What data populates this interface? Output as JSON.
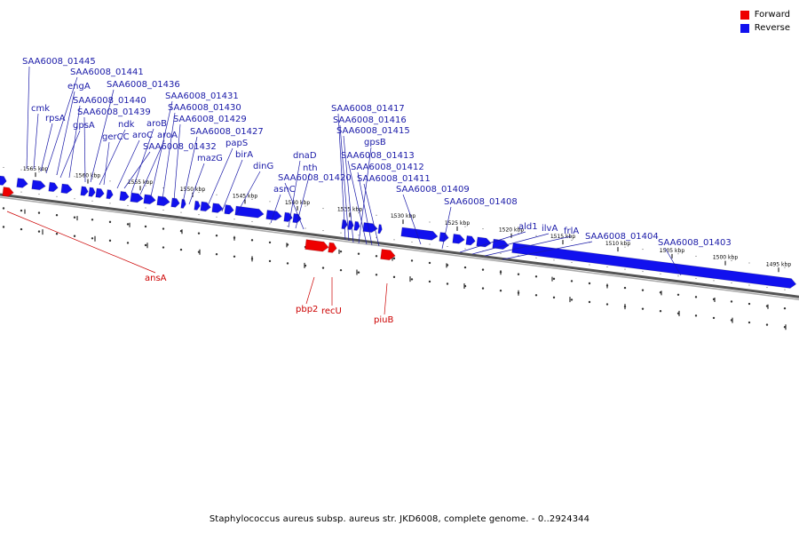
{
  "legend": {
    "forward_label": "Forward",
    "reverse_label": "Reverse",
    "forward_color": "#ee0000",
    "reverse_color": "#1111ee"
  },
  "caption": "Staphylococcus aureus subsp. aureus str. JKD6008, complete genome. - 0..2924344",
  "colors": {
    "reverse_label": "#1a1aa8",
    "forward_label": "#cc0000",
    "backbone": "#666666"
  },
  "kbp_ticks": [
    "1565 kbp",
    "1560 kbp",
    "1555 kbp",
    "1550 kbp",
    "1545 kbp",
    "1540 kbp",
    "1535 kbp",
    "1530 kbp",
    "1525 kbp",
    "1520 kbp",
    "1515 kbp",
    "1510 kbp",
    "1505 kbp",
    "1500 kbp",
    "1495 kbp"
  ],
  "reverse_genes": [
    "SAA6008_01445",
    "cmk",
    "SAA6008_01441",
    "rpsA",
    "engA",
    "gpsA",
    "SAA6008_01440",
    "SAA6008_01439",
    "SAA6008_01436",
    "ndk",
    "gerCC",
    "aroC",
    "aroB",
    "aroA",
    "SAA6008_01432",
    "SAA6008_01431",
    "SAA6008_01430",
    "SAA6008_01429",
    "mazG",
    "SAA6008_01427",
    "papS",
    "birA",
    "dinG",
    "asnC",
    "dnaD",
    "nth",
    "SAA6008_01420",
    "SAA6008_01417",
    "SAA6008_01416",
    "SAA6008_01415",
    "gpsB",
    "SAA6008_01413",
    "SAA6008_01412",
    "SAA6008_01411",
    "SAA6008_01409",
    "SAA6008_01408",
    "ald1",
    "ilvA",
    "frlA",
    "SAA6008_01404",
    "SAA6008_01403"
  ],
  "forward_genes": [
    "ansA",
    "pbp2",
    "recU",
    "piuB"
  ]
}
